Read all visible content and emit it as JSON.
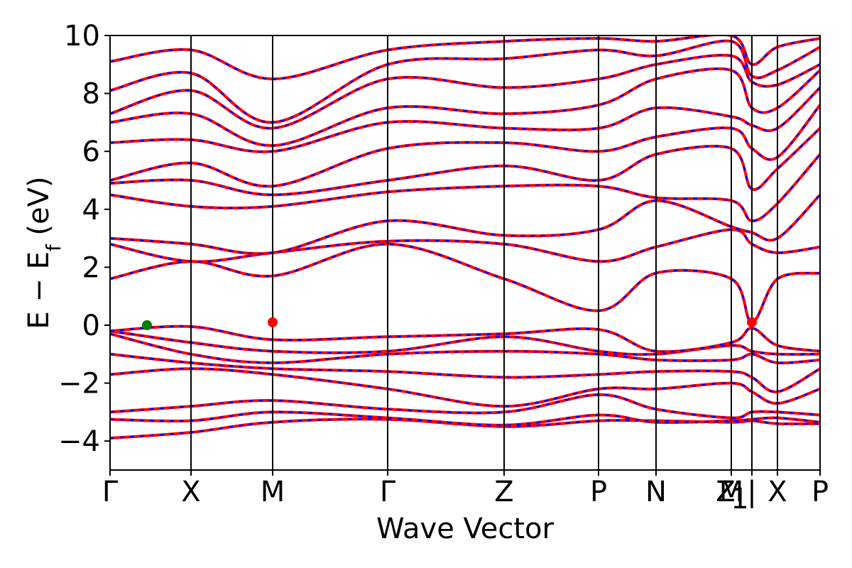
{
  "chart_data": {
    "type": "line",
    "xlabel": "Wave Vector",
    "ylabel_main": "E − E",
    "ylabel_sub": "f",
    "ylabel_unit": " (eV)",
    "ylim": [
      -5,
      10
    ],
    "yticks": [
      -4,
      -2,
      0,
      2,
      4,
      6,
      8,
      10
    ],
    "ytick_labels": [
      "−4",
      "−2",
      "0",
      "2",
      "4",
      "6",
      "8",
      "10"
    ],
    "xlim": [
      0,
      1
    ],
    "kpoints": [
      {
        "label": "Γ",
        "x": 0.0
      },
      {
        "label": "X",
        "x": 0.114
      },
      {
        "label": "M",
        "x": 0.229
      },
      {
        "label": "Γ",
        "x": 0.391
      },
      {
        "label": "Z",
        "x": 0.555
      },
      {
        "label": "P",
        "x": 0.688
      },
      {
        "label": "N",
        "x": 0.769
      },
      {
        "label": "Z",
        "x": 0.875
      },
      {
        "label": "M",
        "x": 0.875
      },
      {
        "label": "1",
        "x": 0.875
      },
      {
        "label": "|",
        "x": 0.904
      },
      {
        "label": "X",
        "x": 0.94
      },
      {
        "label": "P",
        "x": 1.0
      }
    ],
    "colors": {
      "band_solid": "#ff0000",
      "band_dash": "#0000ff",
      "vbm": "#008000",
      "cbm": "#ff0000"
    },
    "vbm": {
      "x": 0.052,
      "y": 0.0
    },
    "cbm": [
      {
        "x": 0.229,
        "y": 0.1
      },
      {
        "x": 0.904,
        "y": 0.1
      }
    ],
    "bands": [
      [
        -3.9,
        -3.7,
        -3.35,
        -3.25,
        -3.5,
        -3.3,
        -3.3,
        -3.35,
        -3.3,
        -3.4,
        -3.4
      ],
      [
        -3.25,
        -3.3,
        -3.0,
        -3.2,
        -3.45,
        -3.1,
        -3.35,
        -3.3,
        -3.25,
        -3.2,
        -3.35
      ],
      [
        -3.0,
        -2.8,
        -2.6,
        -2.9,
        -3.0,
        -2.4,
        -2.9,
        -3.2,
        -3.0,
        -3.0,
        -3.1
      ],
      [
        -1.7,
        -1.5,
        -1.7,
        -2.2,
        -2.8,
        -2.2,
        -2.2,
        -2.0,
        -2.3,
        -2.7,
        -2.2
      ],
      [
        -1.0,
        -1.3,
        -1.5,
        -1.6,
        -1.8,
        -1.7,
        -1.6,
        -1.6,
        -1.8,
        -2.3,
        -1.5
      ],
      [
        -0.3,
        -1.0,
        -1.3,
        -1.0,
        -0.9,
        -1.0,
        -1.2,
        -1.2,
        -1.0,
        -1.3,
        -1.2
      ],
      [
        -0.2,
        -0.6,
        -0.9,
        -0.9,
        -0.4,
        -0.9,
        -1.0,
        -0.7,
        -0.9,
        -1.0,
        -1.0
      ],
      [
        -0.2,
        -0.05,
        -0.5,
        -0.4,
        -0.3,
        -0.15,
        -0.9,
        -0.6,
        -0.1,
        -0.7,
        -0.9
      ],
      [
        1.6,
        2.2,
        1.7,
        2.8,
        1.6,
        0.5,
        1.8,
        1.6,
        0.1,
        1.6,
        1.8
      ],
      [
        2.8,
        2.2,
        2.5,
        2.9,
        2.8,
        2.2,
        2.7,
        3.3,
        2.8,
        2.5,
        2.7
      ],
      [
        3.0,
        2.8,
        2.5,
        3.6,
        3.1,
        3.3,
        4.3,
        3.4,
        3.2,
        3.0,
        4.5
      ],
      [
        4.5,
        4.1,
        4.1,
        4.6,
        4.8,
        4.8,
        4.4,
        4.3,
        3.6,
        4.2,
        5.9
      ],
      [
        4.9,
        5.0,
        4.5,
        5.0,
        5.5,
        5.0,
        5.9,
        6.1,
        4.7,
        5.4,
        6.8
      ],
      [
        5.0,
        5.6,
        4.8,
        6.1,
        6.3,
        6.0,
        6.5,
        6.8,
        6.1,
        5.8,
        7.6
      ],
      [
        6.3,
        6.4,
        6.0,
        7.0,
        6.8,
        6.8,
        7.5,
        7.2,
        6.9,
        6.8,
        8.2
      ],
      [
        7.0,
        7.3,
        6.2,
        7.5,
        7.3,
        7.6,
        8.5,
        8.8,
        7.5,
        7.5,
        8.8
      ],
      [
        7.3,
        8.1,
        6.8,
        8.5,
        8.2,
        8.5,
        9.0,
        9.3,
        8.4,
        8.3,
        9.0
      ],
      [
        8.1,
        8.7,
        7.0,
        9.0,
        9.2,
        9.5,
        9.3,
        9.8,
        8.6,
        8.8,
        9.6
      ],
      [
        9.1,
        9.5,
        8.5,
        9.5,
        9.8,
        9.9,
        9.8,
        10.0,
        9.0,
        9.6,
        9.9
      ]
    ]
  }
}
